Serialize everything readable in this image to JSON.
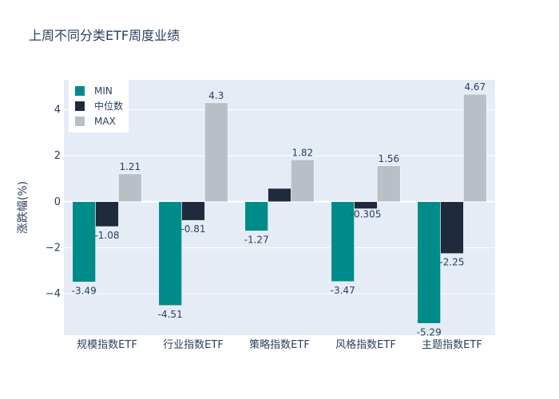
{
  "chart_data": {
    "type": "bar",
    "title": "上周不同分类ETF周度业绩",
    "xlabel": "",
    "ylabel": "涨跌幅(%)",
    "categories": [
      "规模指数ETF",
      "行业指数ETF",
      "策略指数ETF",
      "风格指数ETF",
      "主题指数ETF"
    ],
    "series": [
      {
        "name": "MIN",
        "values": [
          -3.49,
          -4.51,
          -1.27,
          -3.47,
          -5.29
        ],
        "labels": [
          "-3.49",
          "-4.51",
          "-1.27",
          "-3.47",
          "-5.29"
        ],
        "color": "#008b8b"
      },
      {
        "name": "中位数",
        "values": [
          -1.08,
          -0.81,
          0.58,
          -0.305,
          -2.25
        ],
        "labels": [
          "-1.08",
          "-0.81",
          "",
          "-0.305",
          "-2.25"
        ],
        "color": "#1f2a3c"
      },
      {
        "name": "MAX",
        "values": [
          1.21,
          4.3,
          1.82,
          1.56,
          4.67
        ],
        "labels": [
          "1.21",
          "4.3",
          "1.82",
          "1.56",
          "4.67"
        ],
        "color": "#b8bfc7"
      }
    ],
    "ylim": [
      -5.8,
      5.3
    ],
    "yticks": [
      -4,
      -2,
      0,
      2,
      4
    ],
    "ytick_labels": [
      "−4",
      "−2",
      "0",
      "2",
      "4"
    ],
    "grid": true,
    "legend_position": "top-left",
    "plot_bg": "#e5ecf6"
  }
}
